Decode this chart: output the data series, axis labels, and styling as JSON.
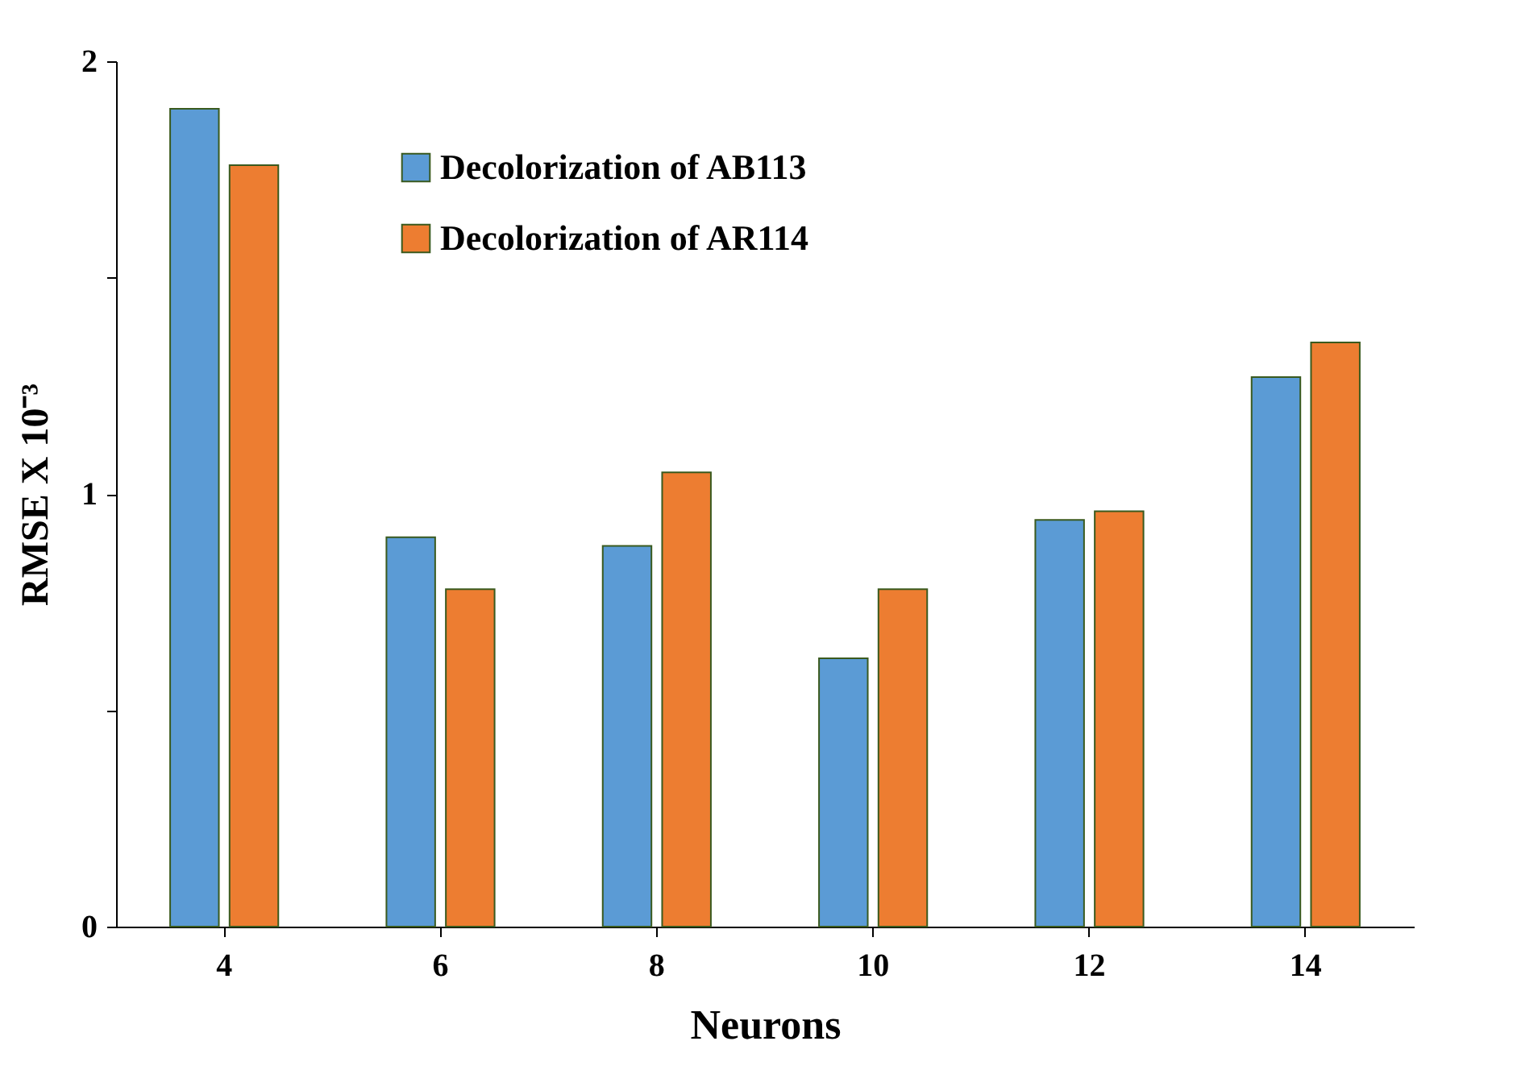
{
  "chart_data": {
    "type": "bar",
    "xlabel": "Neurons",
    "ylabel": "RMSE X 10⁻³",
    "categories": [
      "4",
      "6",
      "8",
      "10",
      "12",
      "14"
    ],
    "series": [
      {
        "name": "Decolorization of AB113",
        "color": "#5b9bd5",
        "values": [
          1.89,
          0.9,
          0.88,
          0.62,
          0.94,
          1.27
        ]
      },
      {
        "name": "Decolorization of AR114",
        "color": "#ed7d31",
        "values": [
          1.76,
          0.78,
          1.05,
          0.78,
          0.96,
          1.35
        ]
      }
    ],
    "ylim": [
      0,
      2
    ],
    "yticks": [
      0,
      {
        "value": 0.5,
        "label": null
      },
      1,
      {
        "value": 1.5,
        "label": null
      },
      2
    ],
    "grid": false,
    "legend": "top"
  }
}
